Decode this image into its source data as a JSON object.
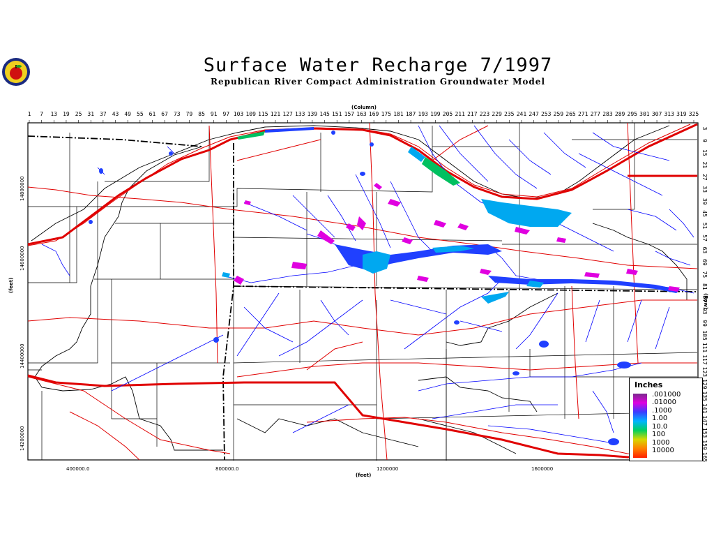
{
  "title": "Surface Water Recharge 7/1997",
  "subtitle": "Republican River Compact Administration Groundwater Model",
  "axes": {
    "top_title": "(Column)",
    "bottom_title": "(feet)",
    "left_title": "(feet)",
    "right_title": "(Row)",
    "columns": [
      "1",
      "7",
      "13",
      "19",
      "25",
      "31",
      "37",
      "43",
      "49",
      "55",
      "61",
      "67",
      "73",
      "79",
      "85",
      "91",
      "97",
      "103",
      "109",
      "115",
      "121",
      "127",
      "133",
      "139",
      "145",
      "151",
      "157",
      "163",
      "169",
      "175",
      "181",
      "187",
      "193",
      "199",
      "205",
      "211",
      "217",
      "223",
      "229",
      "235",
      "241",
      "247",
      "253",
      "259",
      "265",
      "271",
      "277",
      "283",
      "289",
      "295",
      "301",
      "307",
      "313",
      "319",
      "325"
    ],
    "rows": [
      "3",
      "9",
      "15",
      "21",
      "27",
      "33",
      "39",
      "45",
      "51",
      "57",
      "63",
      "69",
      "75",
      "81",
      "87",
      "93",
      "99",
      "105",
      "111",
      "117",
      "123",
      "129",
      "135",
      "141",
      "147",
      "153",
      "159",
      "165"
    ],
    "x_labels": [
      "400000.0",
      "800000.0",
      "1200000",
      "1600000"
    ],
    "y_labels": [
      "14800000",
      "14600000",
      "14400000",
      "14200000"
    ]
  },
  "legend": {
    "title": "Inches",
    "labels": [
      ".001000",
      ".01000",
      ".1000",
      "1.00",
      "10.0",
      "100",
      "1000",
      "10000"
    ],
    "colors": [
      "#7a2a8c",
      "#e000e0",
      "#3c3cff",
      "#00b4ff",
      "#00d060",
      "#d8d800",
      "#ff8000",
      "#ff2000"
    ]
  },
  "colors": {
    "roads": "#e00000",
    "streams": "#0000ff",
    "boundaries": "#000000"
  }
}
